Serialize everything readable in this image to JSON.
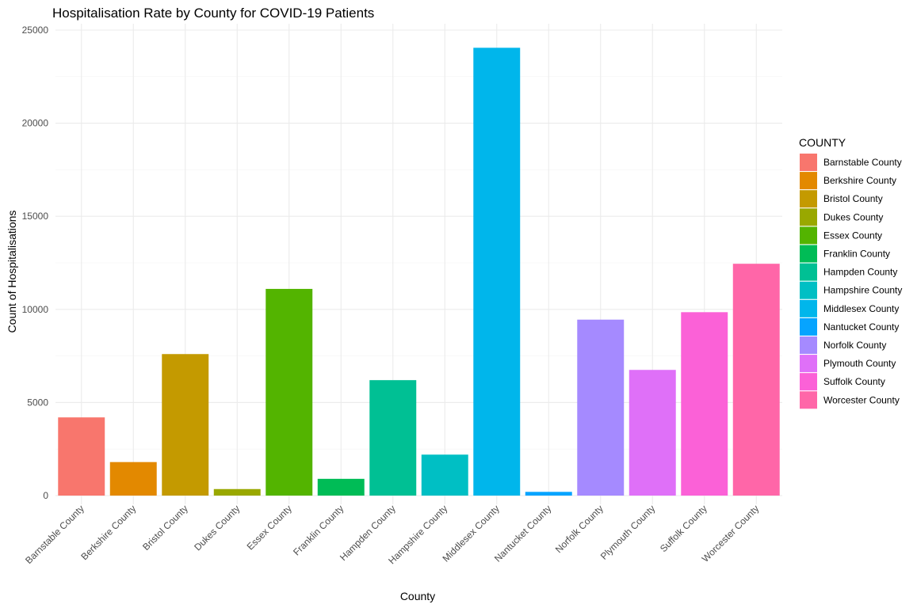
{
  "chart_data": {
    "type": "bar",
    "title": "Hospitalisation Rate by County for COVID-19 Patients",
    "xlabel": "County",
    "ylabel": "Count of Hospitalisations",
    "ylim": [
      0,
      25500
    ],
    "yticks": [
      0,
      5000,
      10000,
      15000,
      20000,
      25000
    ],
    "grid": true,
    "legend": {
      "title": "COUNTY",
      "position": "right"
    },
    "categories": [
      "Barnstable County",
      "Berkshire County",
      "Bristol County",
      "Dukes County",
      "Essex County",
      "Franklin County",
      "Hampden County",
      "Hampshire County",
      "Middlesex County",
      "Nantucket County",
      "Norfolk County",
      "Plymouth County",
      "Suffolk County",
      "Worcester County"
    ],
    "values": [
      4200,
      1800,
      7600,
      350,
      11100,
      900,
      6200,
      2200,
      24050,
      200,
      9450,
      6750,
      9850,
      12450
    ],
    "colors": [
      "#F8766D",
      "#E38900",
      "#C49A00",
      "#99A800",
      "#53B400",
      "#00BC56",
      "#00C094",
      "#00BFC4",
      "#00B6EB",
      "#06A4FF",
      "#A58AFF",
      "#DF70F8",
      "#FB61D7",
      "#FF66A8"
    ]
  }
}
